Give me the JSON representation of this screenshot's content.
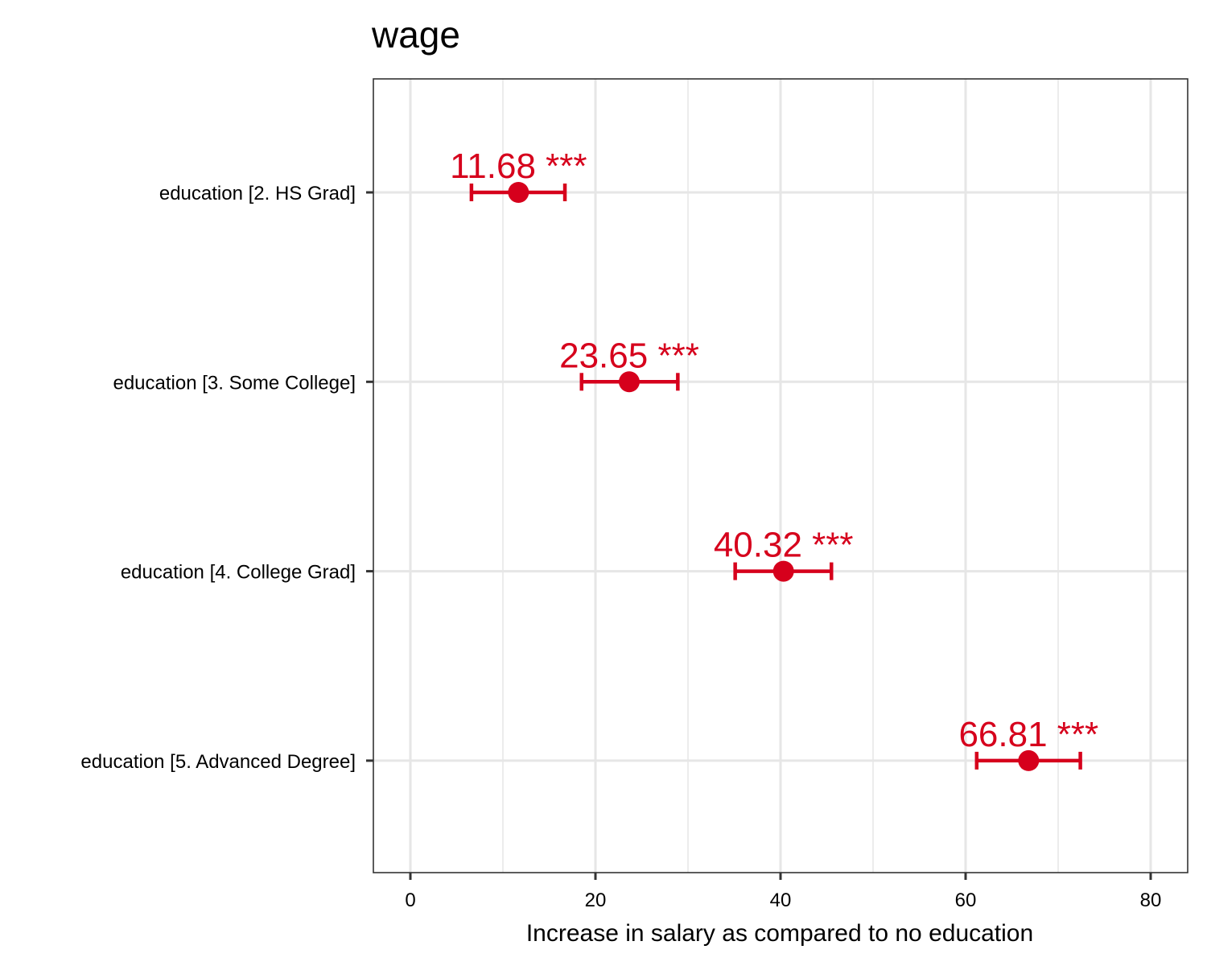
{
  "chart_data": {
    "type": "scatter",
    "title": "wage",
    "xlabel": "Increase in salary as compared to no education",
    "ylabel": "",
    "xlim": [
      -4,
      84
    ],
    "xticks": [
      0,
      20,
      40,
      60,
      80
    ],
    "categories": [
      "education [2. HS Grad]",
      "education [3. Some College]",
      "education [4. College Grad]",
      "education [5. Advanced Degree]"
    ],
    "series": [
      {
        "values": [
          11.68,
          23.65,
          40.32,
          66.81
        ],
        "ci_low": [
          6.6,
          18.5,
          35.1,
          61.2
        ],
        "ci_high": [
          16.7,
          28.9,
          45.5,
          72.4
        ],
        "labels": [
          "11.68 ***",
          "23.65 ***",
          "40.32 ***",
          "66.81 ***"
        ]
      }
    ],
    "grid": true,
    "legend": "none",
    "colors": {
      "point": "#d6001c",
      "grid": "#e6e6e6",
      "panel_border": "#333333"
    }
  }
}
